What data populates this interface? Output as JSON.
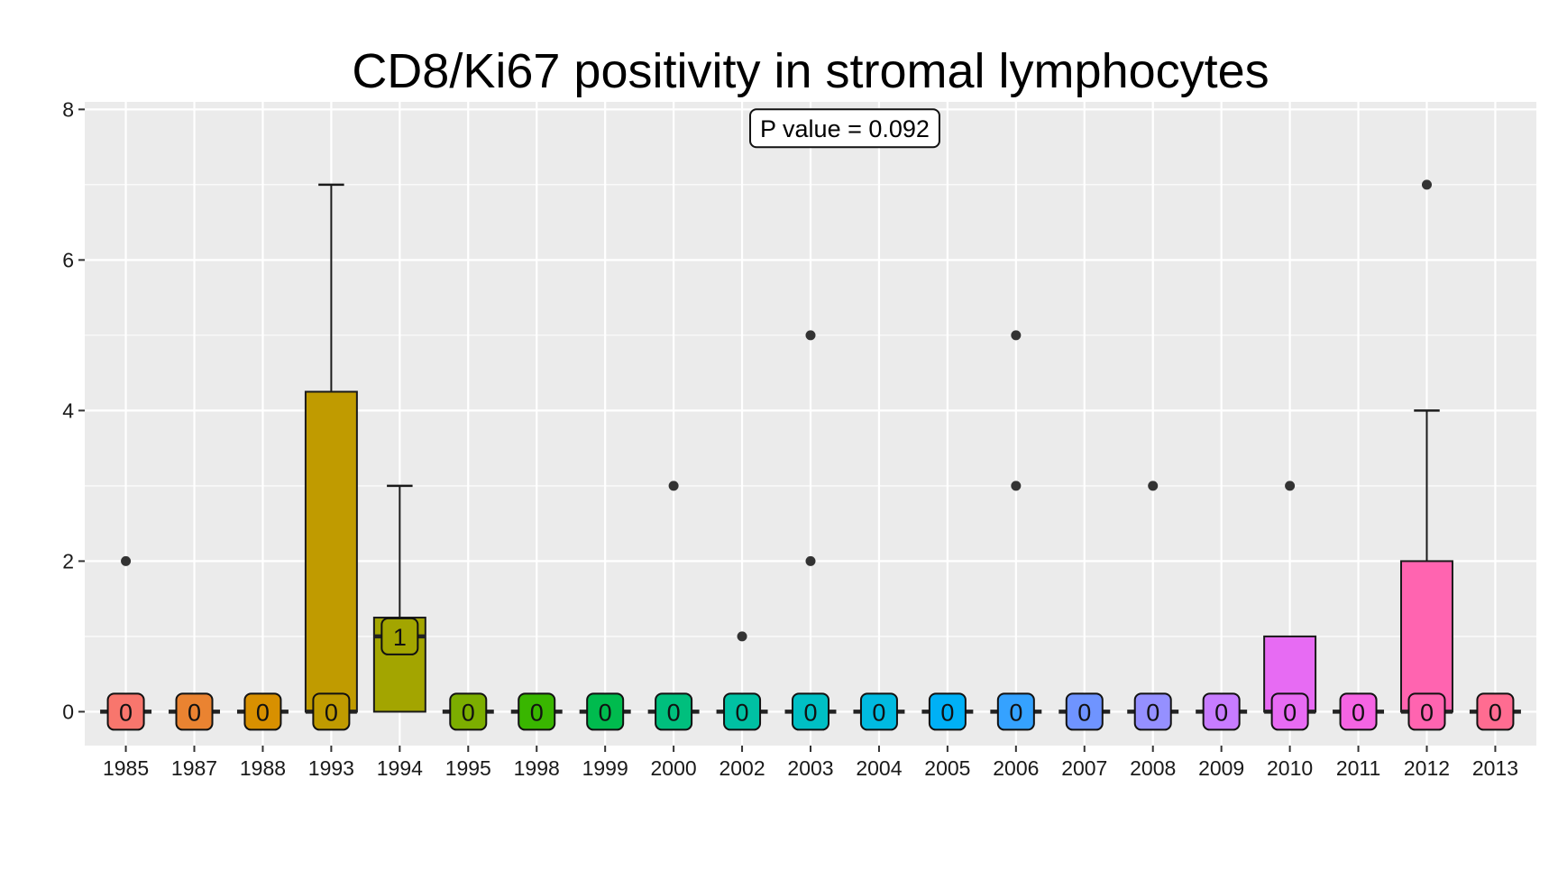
{
  "chart_data": {
    "type": "box",
    "title": "CD8/Ki67 positivity in stromal lymphocytes",
    "xlabel": "",
    "ylabel": "",
    "ylim": [
      -0.45,
      8.1
    ],
    "y_ticks": [
      0,
      2,
      4,
      6,
      8
    ],
    "grid": true,
    "legend": "none",
    "annotation": "P value = 0.092",
    "annotation_value_x": 10.5,
    "annotation_value_y": 7.75,
    "colors": {
      "panel": "#ebebeb",
      "grid": "#ffffff",
      "box_stroke": "#1a1a1a",
      "point": "#333333"
    },
    "categories": [
      "1985",
      "1987",
      "1988",
      "1993",
      "1994",
      "1995",
      "1998",
      "1999",
      "2000",
      "2002",
      "2003",
      "2004",
      "2005",
      "2006",
      "2007",
      "2008",
      "2009",
      "2010",
      "2011",
      "2012",
      "2013"
    ],
    "boxes": [
      {
        "category": "1985",
        "color": "#F8766D",
        "q1": 0,
        "median": 0,
        "q3": 0,
        "whisker_low": 0,
        "whisker_high": 0,
        "outliers": [
          2
        ],
        "label": "0"
      },
      {
        "category": "1987",
        "color": "#EA8331",
        "q1": 0,
        "median": 0,
        "q3": 0,
        "whisker_low": 0,
        "whisker_high": 0,
        "outliers": [],
        "label": "0"
      },
      {
        "category": "1988",
        "color": "#D89000",
        "q1": 0,
        "median": 0,
        "q3": 0,
        "whisker_low": 0,
        "whisker_high": 0,
        "outliers": [],
        "label": "0"
      },
      {
        "category": "1993",
        "color": "#C09B00",
        "q1": 0,
        "median": 0,
        "q3": 4.25,
        "whisker_low": 0,
        "whisker_high": 7,
        "outliers": [],
        "label": "0"
      },
      {
        "category": "1994",
        "color": "#A3A500",
        "q1": 0,
        "median": 1,
        "q3": 1.25,
        "whisker_low": 0,
        "whisker_high": 3,
        "outliers": [],
        "label": "1"
      },
      {
        "category": "1995",
        "color": "#7CAE00",
        "q1": 0,
        "median": 0,
        "q3": 0,
        "whisker_low": 0,
        "whisker_high": 0,
        "outliers": [],
        "label": "0"
      },
      {
        "category": "1998",
        "color": "#39B600",
        "q1": 0,
        "median": 0,
        "q3": 0,
        "whisker_low": 0,
        "whisker_high": 0,
        "outliers": [],
        "label": "0"
      },
      {
        "category": "1999",
        "color": "#00BB4E",
        "q1": 0,
        "median": 0,
        "q3": 0,
        "whisker_low": 0,
        "whisker_high": 0,
        "outliers": [],
        "label": "0"
      },
      {
        "category": "2000",
        "color": "#00BF7D",
        "q1": 0,
        "median": 0,
        "q3": 0,
        "whisker_low": 0,
        "whisker_high": 0,
        "outliers": [
          3
        ],
        "label": "0"
      },
      {
        "category": "2002",
        "color": "#00C1A3",
        "q1": 0,
        "median": 0,
        "q3": 0,
        "whisker_low": 0,
        "whisker_high": 0,
        "outliers": [
          1
        ],
        "label": "0"
      },
      {
        "category": "2003",
        "color": "#00BFC4",
        "q1": 0,
        "median": 0,
        "q3": 0,
        "whisker_low": 0,
        "whisker_high": 0,
        "outliers": [
          2,
          5
        ],
        "label": "0"
      },
      {
        "category": "2004",
        "color": "#00BAE0",
        "q1": 0,
        "median": 0,
        "q3": 0,
        "whisker_low": 0,
        "whisker_high": 0,
        "outliers": [],
        "label": "0"
      },
      {
        "category": "2005",
        "color": "#00B0F6",
        "q1": 0,
        "median": 0,
        "q3": 0,
        "whisker_low": 0,
        "whisker_high": 0,
        "outliers": [],
        "label": "0"
      },
      {
        "category": "2006",
        "color": "#35A2FF",
        "q1": 0,
        "median": 0,
        "q3": 0,
        "whisker_low": 0,
        "whisker_high": 0,
        "outliers": [
          3,
          5
        ],
        "label": "0"
      },
      {
        "category": "2007",
        "color": "#6F94FF",
        "q1": 0,
        "median": 0,
        "q3": 0,
        "whisker_low": 0,
        "whisker_high": 0,
        "outliers": [],
        "label": "0"
      },
      {
        "category": "2008",
        "color": "#9590FF",
        "q1": 0,
        "median": 0,
        "q3": 0,
        "whisker_low": 0,
        "whisker_high": 0,
        "outliers": [
          3
        ],
        "label": "0"
      },
      {
        "category": "2009",
        "color": "#C77CFF",
        "q1": 0,
        "median": 0,
        "q3": 0,
        "whisker_low": 0,
        "whisker_high": 0,
        "outliers": [],
        "label": "0"
      },
      {
        "category": "2010",
        "color": "#E76BF3",
        "q1": 0,
        "median": 0,
        "q3": 1,
        "whisker_low": 0,
        "whisker_high": 1,
        "outliers": [
          3
        ],
        "label": "0"
      },
      {
        "category": "2011",
        "color": "#F564E3",
        "q1": 0,
        "median": 0,
        "q3": 0,
        "whisker_low": 0,
        "whisker_high": 0,
        "outliers": [],
        "label": "0"
      },
      {
        "category": "2012",
        "color": "#FF64B0",
        "q1": 0,
        "median": 0,
        "q3": 2,
        "whisker_low": 0,
        "whisker_high": 4,
        "outliers": [
          7
        ],
        "label": "0"
      },
      {
        "category": "2013",
        "color": "#FF6C91",
        "q1": 0,
        "median": 0,
        "q3": 0,
        "whisker_low": 0,
        "whisker_high": 0,
        "outliers": [],
        "label": "0"
      }
    ]
  }
}
